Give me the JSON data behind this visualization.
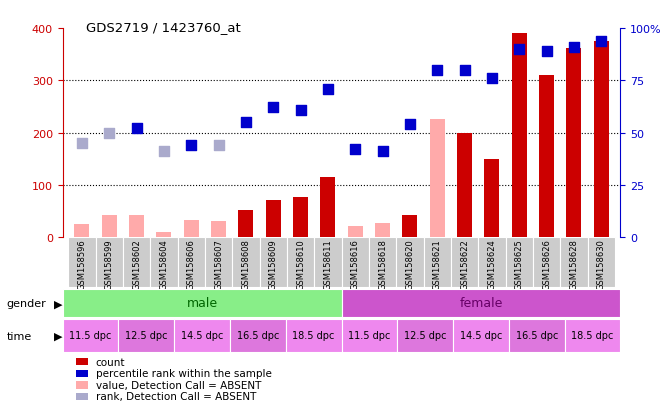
{
  "title": "GDS2719 / 1423760_at",
  "samples": [
    "GSM158596",
    "GSM158599",
    "GSM158602",
    "GSM158604",
    "GSM158606",
    "GSM158607",
    "GSM158608",
    "GSM158609",
    "GSM158610",
    "GSM158611",
    "GSM158616",
    "GSM158618",
    "GSM158620",
    "GSM158621",
    "GSM158622",
    "GSM158624",
    "GSM158625",
    "GSM158626",
    "GSM158628",
    "GSM158630"
  ],
  "count_values": [
    25,
    42,
    42,
    10,
    32,
    30,
    52,
    70,
    77,
    115,
    22,
    27,
    42,
    225,
    200,
    150,
    390,
    310,
    362,
    375
  ],
  "count_absent": [
    true,
    true,
    true,
    true,
    true,
    true,
    false,
    false,
    false,
    false,
    true,
    true,
    false,
    true,
    false,
    false,
    false,
    false,
    false,
    false
  ],
  "rank_values": [
    45,
    50,
    52,
    41,
    44,
    44,
    55,
    62,
    61,
    71,
    42,
    41,
    54,
    80,
    80,
    76,
    90,
    89,
    91,
    94
  ],
  "rank_absent": [
    true,
    true,
    false,
    true,
    false,
    true,
    false,
    false,
    false,
    false,
    false,
    false,
    false,
    false,
    false,
    false,
    false,
    false,
    false,
    false
  ],
  "ylim_left": [
    0,
    400
  ],
  "ylim_right": [
    0,
    100
  ],
  "yticks_left": [
    0,
    100,
    200,
    300,
    400
  ],
  "yticks_right": [
    0,
    25,
    50,
    75,
    100
  ],
  "color_count": "#cc0000",
  "color_count_absent": "#ffaaaa",
  "color_rank": "#0000cc",
  "color_rank_absent": "#aaaacc",
  "color_male": "#88ee88",
  "color_female": "#cc55cc",
  "color_axis_left": "#cc0000",
  "color_axis_right": "#0000cc",
  "time_labels_per_group": [
    "11.5 dpc",
    "12.5 dpc",
    "14.5 dpc",
    "16.5 dpc",
    "18.5 dpc"
  ],
  "time_colors_5": [
    "#ee88ee",
    "#dd77dd",
    "#ee88ee",
    "#dd77dd",
    "#ee88ee"
  ],
  "bar_width": 0.55,
  "legend_items": [
    {
      "color": "#cc0000",
      "label": "count"
    },
    {
      "color": "#0000cc",
      "label": "percentile rank within the sample"
    },
    {
      "color": "#ffaaaa",
      "label": "value, Detection Call = ABSENT"
    },
    {
      "color": "#aaaacc",
      "label": "rank, Detection Call = ABSENT"
    }
  ]
}
